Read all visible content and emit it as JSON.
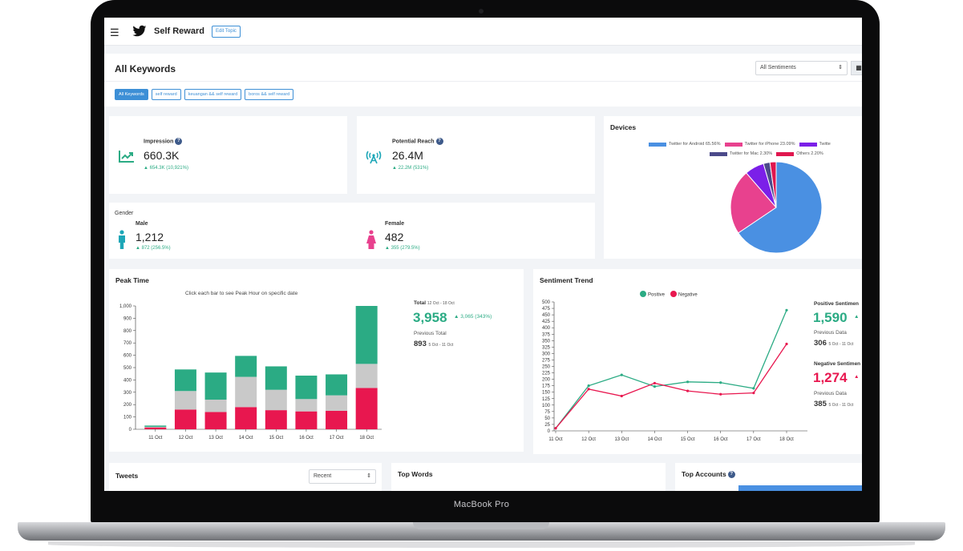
{
  "device_label": "MacBook Pro",
  "topbar": {
    "app_title": "Self Reward",
    "edit_button": "Edit Topic"
  },
  "keywords": {
    "title": "All Keywords",
    "sentiment_select": "All Sentiments",
    "chips": [
      "All Keywords",
      "self reward",
      "keuangan && self reward",
      "boros && self reward"
    ]
  },
  "impression": {
    "label": "Impression",
    "help": "?",
    "value": "660.3K",
    "change": "▲ 654.3K (10,921%)"
  },
  "reach": {
    "label": "Potential Reach",
    "help": "?",
    "value": "26.4M",
    "change": "▲ 22.2M (531%)"
  },
  "gender": {
    "title": "Gender",
    "male": {
      "label": "Male",
      "value": "1,212",
      "change": "▲ 872 (256.5%)"
    },
    "female": {
      "label": "Female",
      "value": "482",
      "change": "▲ 355 (279.5%)"
    }
  },
  "devices": {
    "title": "Devices",
    "legend": [
      "Twitter for Android 65.56%",
      "Twitter for iPhone 23.09%",
      "Twitte",
      "Twitter for Mac 2.30%",
      "Others 2.20%"
    ]
  },
  "peak_time": {
    "title": "Peak Time",
    "hint": "Click each bar to see Peak Hour on specific date",
    "total_label": "Total",
    "total_date": "12 Oct - 18 Oct",
    "total_value": "3,958",
    "total_change": "▲ 3,065 (343%)",
    "prev_label": "Previous Total",
    "prev_value": "893",
    "prev_date": "5 Oct - 11 Oct"
  },
  "sentiment": {
    "title": "Sentiment Trend",
    "positive_label": "Positive Sentimen",
    "positive_value": "1,590",
    "positive_arrow": "▲",
    "prev_data_label": "Previous Data",
    "positive_prev": "306",
    "prev_date": "5 Oct - 11 Oct",
    "negative_label": "Negative Sentimen",
    "negative_value": "1,274",
    "negative_arrow": "▲",
    "negative_prev": "385"
  },
  "tweets": {
    "title": "Tweets",
    "select": "Recent"
  },
  "top_words": {
    "title": "Top Words"
  },
  "top_accounts": {
    "title": "Top Accounts",
    "help": "?"
  },
  "colors": {
    "accent": "#3d8fd6",
    "green": "#2bab84",
    "red": "#e8174f",
    "grey": "#c9c9c9",
    "android": "#4a90e2",
    "iphone": "#e8418e",
    "other_purple": "#7b1fe8",
    "mac": "#4b4a8a",
    "others": "#e0174f"
  },
  "chart_data": [
    {
      "type": "pie",
      "title": "Devices",
      "labels": [
        "Twitter for Android",
        "Twitter for iPhone",
        "Twitte",
        "Twitter for Mac",
        "Others"
      ],
      "values": [
        65.56,
        23.09,
        6.85,
        2.3,
        2.2
      ]
    },
    {
      "type": "bar",
      "stacked": true,
      "categories": [
        "11 Oct",
        "12 Oct",
        "13 Oct",
        "14 Oct",
        "15 Oct",
        "16 Oct",
        "17 Oct",
        "18 Oct"
      ],
      "series": [
        {
          "values": [
            15,
            160,
            140,
            180,
            155,
            145,
            150,
            335
          ]
        },
        {
          "values": [
            5,
            150,
            100,
            245,
            165,
            100,
            125,
            195
          ]
        },
        {
          "values": [
            10,
            175,
            220,
            170,
            190,
            190,
            170,
            470
          ]
        }
      ],
      "ylim": [
        0,
        1000
      ],
      "yticks": [
        "0",
        "100",
        "200",
        "300",
        "400",
        "500",
        "600",
        "700",
        "800",
        "900",
        "1,000"
      ]
    },
    {
      "type": "line",
      "x": [
        "11 Oct",
        "12 Oct",
        "13 Oct",
        "14 Oct",
        "15 Oct",
        "16 Oct",
        "17 Oct",
        "18 Oct"
      ],
      "series": [
        {
          "name": "Positive",
          "values": [
            10,
            175,
            217,
            172,
            190,
            187,
            165,
            468
          ]
        },
        {
          "name": "Negative",
          "values": [
            10,
            162,
            135,
            185,
            155,
            142,
            147,
            337
          ]
        }
      ],
      "ylim": [
        0,
        500
      ],
      "yticks": [
        "0",
        "25",
        "50",
        "75",
        "100",
        "125",
        "150",
        "175",
        "200",
        "225",
        "250",
        "275",
        "300",
        "325",
        "350",
        "375",
        "400",
        "425",
        "450",
        "475",
        "500"
      ]
    }
  ]
}
